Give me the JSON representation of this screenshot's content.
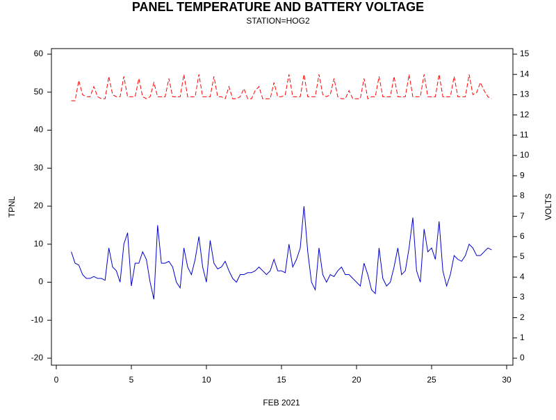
{
  "chart_data": {
    "type": "line",
    "title": "PANEL TEMPERATURE AND BATTERY VOLTAGE",
    "subtitle": "STATION=HOG2",
    "x_label": "FEB 2021",
    "y_label": "TPNL",
    "y2_label": "VOLTS",
    "x": [
      1,
      1.25,
      1.5,
      1.75,
      2,
      2.25,
      2.5,
      2.75,
      3,
      3.25,
      3.5,
      3.75,
      4,
      4.25,
      4.5,
      4.75,
      5,
      5.25,
      5.5,
      5.75,
      6,
      6.25,
      6.5,
      6.75,
      7,
      7.25,
      7.5,
      7.75,
      8,
      8.25,
      8.5,
      8.75,
      9,
      9.25,
      9.5,
      9.75,
      10,
      10.25,
      10.5,
      10.75,
      11,
      11.25,
      11.5,
      11.75,
      12,
      12.25,
      12.5,
      12.75,
      13,
      13.25,
      13.5,
      13.75,
      14,
      14.25,
      14.5,
      14.75,
      15,
      15.25,
      15.5,
      15.75,
      16,
      16.25,
      16.5,
      16.75,
      17,
      17.25,
      17.5,
      17.75,
      18,
      18.25,
      18.5,
      18.75,
      19,
      19.25,
      19.5,
      19.75,
      20,
      20.25,
      20.5,
      20.75,
      21,
      21.25,
      21.5,
      21.75,
      22,
      22.25,
      22.5,
      22.75,
      23,
      23.25,
      23.5,
      23.75,
      24,
      24.25,
      24.5,
      24.75,
      25,
      25.25,
      25.5,
      25.75,
      26,
      26.25,
      26.5,
      26.75,
      27,
      27.25,
      27.5,
      27.75,
      28,
      28.25,
      28.5,
      28.75,
      29
    ],
    "series": [
      {
        "name": "TPNL",
        "color": "#0000cc",
        "dash": false,
        "axis": "y",
        "values": [
          8,
          5,
          4.5,
          2,
          1,
          1,
          1.5,
          1,
          1,
          0.5,
          9,
          4,
          3,
          0,
          10,
          13,
          -1,
          5,
          5,
          8,
          6,
          0,
          -4.5,
          15,
          5,
          5,
          5.5,
          4,
          0,
          -1.5,
          9,
          4,
          2,
          6,
          12,
          4,
          0,
          11,
          5,
          3.5,
          4,
          5.5,
          3,
          1,
          0,
          2,
          2,
          2.5,
          2.5,
          3,
          4,
          3,
          2,
          3,
          6,
          3,
          3,
          2.5,
          10,
          4,
          6,
          9,
          20,
          8,
          0,
          -2,
          9,
          2,
          0,
          2,
          1.5,
          3,
          4,
          2,
          2,
          1,
          0,
          -1,
          5,
          2,
          -2,
          -3,
          9,
          1,
          -1,
          0,
          4,
          9,
          2,
          3,
          9,
          17,
          3,
          0,
          14,
          8,
          9,
          6,
          16,
          3,
          -1,
          2,
          7,
          6,
          5.5,
          7,
          10,
          9,
          7,
          7,
          8,
          9,
          8.5
        ]
      },
      {
        "name": "VOLTS",
        "color": "#ff0000",
        "dash": true,
        "axis": "y2",
        "values": [
          12.7,
          12.7,
          13.7,
          13.0,
          12.9,
          12.9,
          13.4,
          12.9,
          12.8,
          12.8,
          13.9,
          13.0,
          12.9,
          12.9,
          13.9,
          12.9,
          12.9,
          12.9,
          13.8,
          12.9,
          12.8,
          12.9,
          13.6,
          12.9,
          12.9,
          12.9,
          13.8,
          12.9,
          12.9,
          12.9,
          14.0,
          12.9,
          12.9,
          12.9,
          14.0,
          12.9,
          12.9,
          12.9,
          13.9,
          12.9,
          12.9,
          12.8,
          13.4,
          12.8,
          12.8,
          12.9,
          13.3,
          12.8,
          12.8,
          13.2,
          13.4,
          12.8,
          12.8,
          12.8,
          13.6,
          12.9,
          12.9,
          13.0,
          14.0,
          12.9,
          12.9,
          12.9,
          14.0,
          12.9,
          12.9,
          12.9,
          14.0,
          13.0,
          12.9,
          13.0,
          13.8,
          12.9,
          12.8,
          12.8,
          13.2,
          12.8,
          12.8,
          12.8,
          13.8,
          12.8,
          12.9,
          12.9,
          13.9,
          12.9,
          12.9,
          12.9,
          13.9,
          12.9,
          12.9,
          12.9,
          14.0,
          12.9,
          12.9,
          12.9,
          14.0,
          12.9,
          12.9,
          12.9,
          14.0,
          12.9,
          12.9,
          12.9,
          13.9,
          12.9,
          12.9,
          12.9,
          14.0,
          13.0,
          13.1,
          13.6,
          13.2,
          12.9,
          12.8
        ]
      }
    ],
    "xlim": [
      0,
      30
    ],
    "xticks": [
      0,
      5,
      10,
      15,
      20,
      25,
      30
    ],
    "ylim": [
      -20,
      60
    ],
    "yticks": [
      -20,
      -10,
      0,
      10,
      20,
      30,
      40,
      50,
      60
    ],
    "y2lim": [
      0,
      15
    ],
    "y2ticks": [
      0,
      1,
      2,
      3,
      4,
      5,
      6,
      7,
      8,
      9,
      10,
      11,
      12,
      13,
      14,
      15
    ]
  }
}
